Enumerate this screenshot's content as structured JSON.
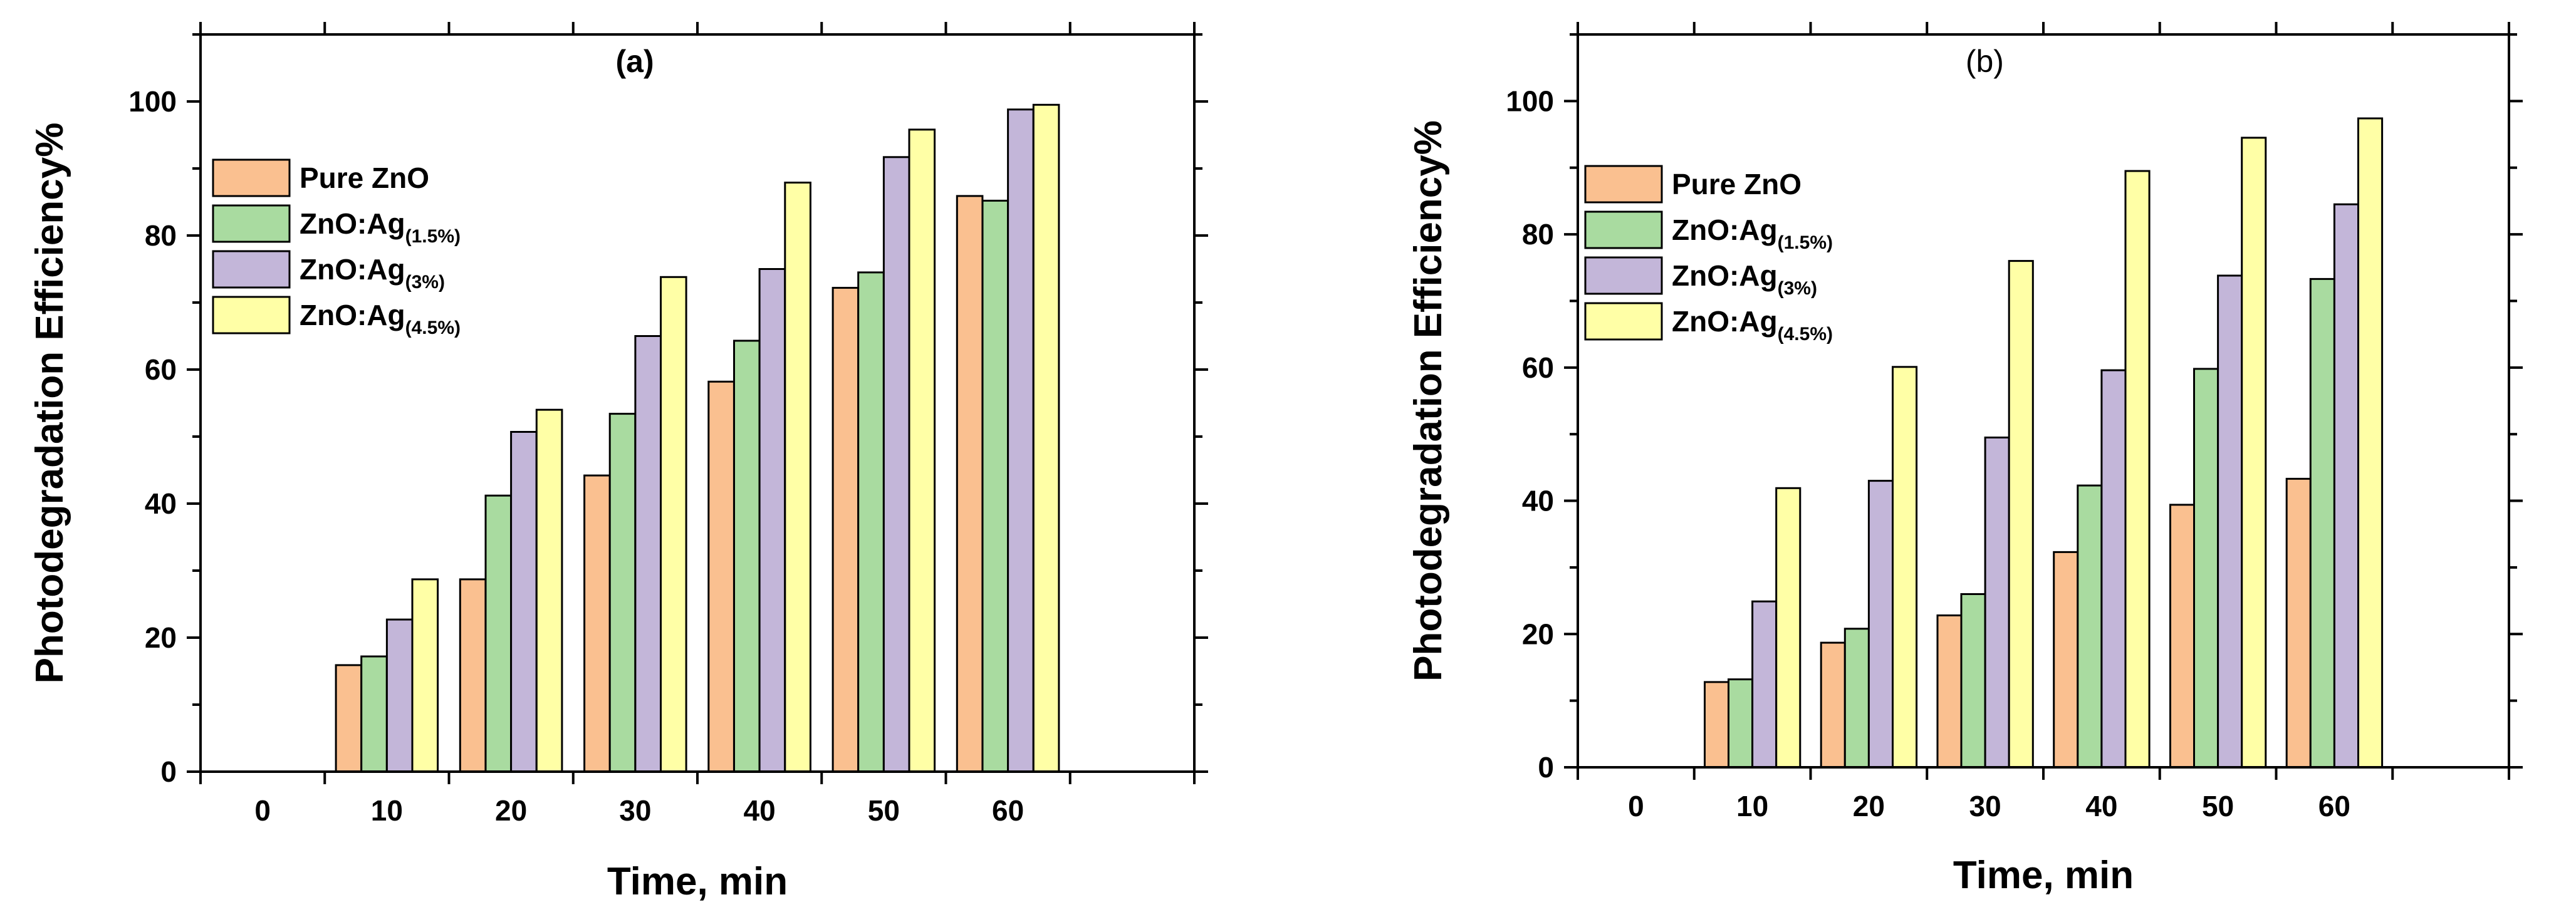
{
  "chart_data": [
    {
      "type": "bar",
      "panel_label": "(a)",
      "panel_label_weight": "bold",
      "xlabel": "Time, min",
      "ylabel": "Photodegradation Efficiency%",
      "categories": [
        "0",
        "10",
        "20",
        "30",
        "40",
        "50",
        "60"
      ],
      "ylim": [
        0,
        110
      ],
      "yticks": [
        0,
        20,
        40,
        60,
        80,
        100
      ],
      "legend_position": "upper-left",
      "series": [
        {
          "name": "Pure ZnO",
          "label_base": "Pure ZnO",
          "label_sub": "",
          "color": "#FAC090",
          "values": [
            0,
            15.9,
            28.7,
            44.2,
            58.2,
            72.2,
            85.9
          ]
        },
        {
          "name": "ZnO:Ag(1.5%)",
          "label_base": "ZnO:Ag",
          "label_sub": "(1.5%)",
          "color": "#A9DBA0",
          "values": [
            0,
            17.2,
            41.2,
            53.4,
            64.3,
            74.5,
            85.2
          ]
        },
        {
          "name": "ZnO:Ag(3%)",
          "label_base": "ZnO:Ag",
          "label_sub": "(3%)",
          "color": "#C3B6D9",
          "values": [
            0,
            22.7,
            50.7,
            65.0,
            75.0,
            91.7,
            98.8
          ]
        },
        {
          "name": "ZnO:Ag(4.5%)",
          "label_base": "ZnO:Ag",
          "label_sub": "(4.5%)",
          "color": "#FFFFA6",
          "values": [
            0,
            28.7,
            54.0,
            73.8,
            87.9,
            95.8,
            99.5
          ]
        }
      ]
    },
    {
      "type": "bar",
      "panel_label": "(b)",
      "panel_label_weight": "normal",
      "xlabel": "Time, min",
      "ylabel": "Photodegradation Efficiency%",
      "categories": [
        "0",
        "10",
        "20",
        "30",
        "40",
        "50",
        "60"
      ],
      "ylim": [
        0,
        110
      ],
      "yticks": [
        0,
        20,
        40,
        60,
        80,
        100
      ],
      "legend_position": "upper-left",
      "series": [
        {
          "name": "Pure ZnO",
          "label_base": "Pure ZnO",
          "label_sub": "",
          "color": "#FAC090",
          "values": [
            0,
            12.8,
            18.7,
            22.8,
            32.3,
            39.4,
            43.3
          ]
        },
        {
          "name": "ZnO:Ag(1.5%)",
          "label_base": "ZnO:Ag",
          "label_sub": "(1.5%)",
          "color": "#A9DBA0",
          "values": [
            0,
            13.2,
            20.8,
            26.0,
            42.3,
            59.8,
            73.3
          ]
        },
        {
          "name": "ZnO:Ag(3%)",
          "label_base": "ZnO:Ag",
          "label_sub": "(3%)",
          "color": "#C3B6D9",
          "values": [
            0,
            24.9,
            43.0,
            49.5,
            59.6,
            73.8,
            84.5
          ]
        },
        {
          "name": "ZnO:Ag(4.5%)",
          "label_base": "ZnO:Ag",
          "label_sub": "(4.5%)",
          "color": "#FFFFA6",
          "values": [
            0,
            41.9,
            60.1,
            76.0,
            89.5,
            94.5,
            97.4
          ]
        }
      ]
    }
  ]
}
